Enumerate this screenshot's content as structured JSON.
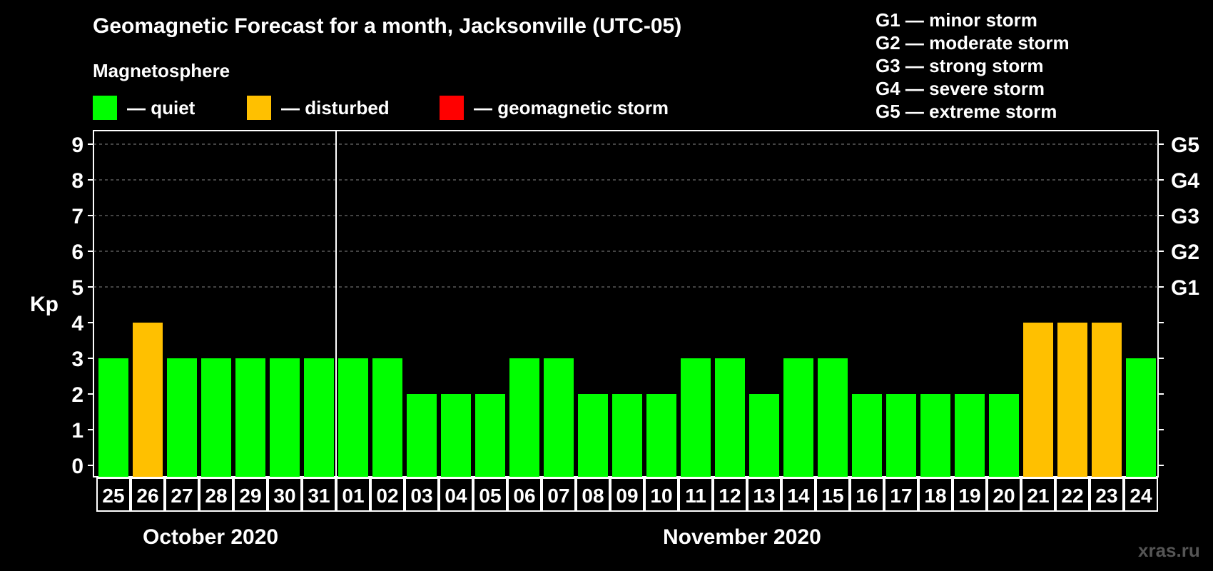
{
  "title": "Geomagnetic Forecast for a month, Jacksonville (UTC-05)",
  "legend": {
    "heading": "Magnetosphere",
    "items": [
      {
        "label": "— quiet",
        "color": "#00ff00"
      },
      {
        "label": "— disturbed",
        "color": "#ffc000"
      },
      {
        "label": "— geomagnetic storm",
        "color": "#ff0000"
      }
    ]
  },
  "storm_legend": [
    "G1 — minor storm",
    "G2 — moderate storm",
    "G3 — strong storm",
    "G4 — severe storm",
    "G5 — extreme storm"
  ],
  "months": {
    "first": "October 2020",
    "second": "November 2020"
  },
  "watermark": "xras.ru",
  "chart_data": {
    "type": "bar",
    "ylabel": "Kp",
    "ylim": [
      0,
      9
    ],
    "yticks": [
      0,
      1,
      2,
      3,
      4,
      5,
      6,
      7,
      8,
      9
    ],
    "right_axis_labels": [
      {
        "kp": 5,
        "label": "G1"
      },
      {
        "kp": 6,
        "label": "G2"
      },
      {
        "kp": 7,
        "label": "G3"
      },
      {
        "kp": 8,
        "label": "G4"
      },
      {
        "kp": 9,
        "label": "G5"
      }
    ],
    "grid": true,
    "categories": [
      "25",
      "26",
      "27",
      "28",
      "29",
      "30",
      "31",
      "01",
      "02",
      "03",
      "04",
      "05",
      "06",
      "07",
      "08",
      "09",
      "10",
      "11",
      "12",
      "13",
      "14",
      "15",
      "16",
      "17",
      "18",
      "19",
      "20",
      "21",
      "22",
      "23",
      "24"
    ],
    "values": [
      3,
      4,
      3,
      3,
      3,
      3,
      3,
      3,
      3,
      2,
      2,
      2,
      3,
      3,
      2,
      2,
      2,
      3,
      3,
      2,
      3,
      3,
      2,
      2,
      2,
      2,
      2,
      4,
      4,
      4,
      3
    ],
    "status": [
      "quiet",
      "disturbed",
      "quiet",
      "quiet",
      "quiet",
      "quiet",
      "quiet",
      "quiet",
      "quiet",
      "quiet",
      "quiet",
      "quiet",
      "quiet",
      "quiet",
      "quiet",
      "quiet",
      "quiet",
      "quiet",
      "quiet",
      "quiet",
      "quiet",
      "quiet",
      "quiet",
      "quiet",
      "quiet",
      "quiet",
      "quiet",
      "disturbed",
      "disturbed",
      "disturbed",
      "quiet"
    ],
    "status_colors": {
      "quiet": "#00ff00",
      "disturbed": "#ffc000",
      "storm": "#ff0000"
    },
    "month_boundary_after": "31"
  }
}
